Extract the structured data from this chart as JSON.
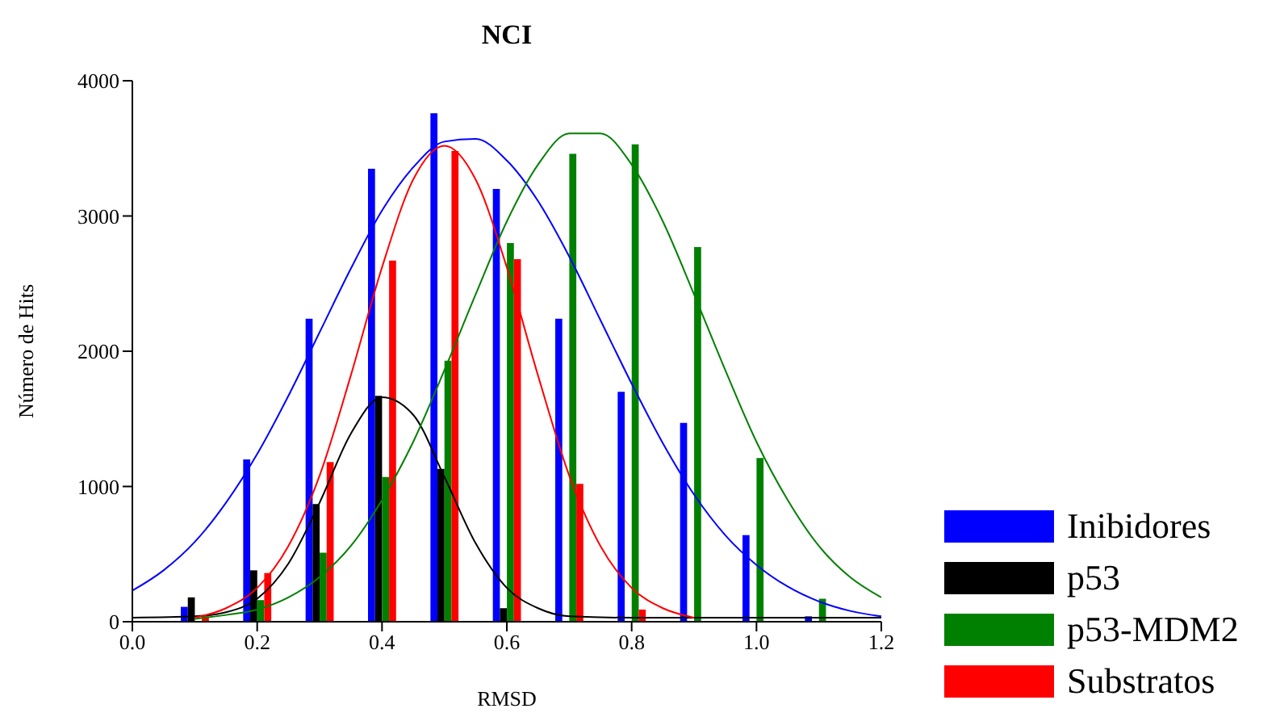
{
  "chart_data": {
    "type": "bar",
    "title": "NCI",
    "xlabel": "RMSD",
    "ylabel": "Número de Hits",
    "x": [
      0.1,
      0.2,
      0.3,
      0.4,
      0.5,
      0.6,
      0.7,
      0.8,
      0.9,
      1.0,
      1.1
    ],
    "xlim": [
      0,
      1.2
    ],
    "xticks": [
      {
        "value": 0,
        "label": "0.0"
      },
      {
        "value": 0.2,
        "label": "0.2"
      },
      {
        "value": 0.4,
        "label": "0.4"
      },
      {
        "value": 0.6,
        "label": "0.6"
      },
      {
        "value": 0.8,
        "label": "0.8"
      },
      {
        "value": 1,
        "label": "1.0"
      },
      {
        "value": 1.2,
        "label": "1.2"
      }
    ],
    "ylim": [
      0,
      4000
    ],
    "yticks": [
      0,
      1000,
      2000,
      3000,
      4000
    ],
    "grid": false,
    "legend": "bottom right",
    "series": [
      {
        "name": "Inibidores",
        "color": "#0000ff",
        "values": [
          110,
          1200,
          2240,
          3350,
          3760,
          3200,
          2240,
          1700,
          1470,
          640,
          40
        ]
      },
      {
        "name": "p53",
        "color": "#000000",
        "values": [
          180,
          380,
          870,
          1670,
          1130,
          100,
          0,
          0,
          0,
          0,
          0
        ]
      },
      {
        "name": "p53-MDM2",
        "color": "#008000",
        "values": [
          0,
          160,
          510,
          1070,
          1930,
          2800,
          3460,
          3530,
          2770,
          1210,
          170
        ]
      },
      {
        "name": "Substratos",
        "color": "#ff0000",
        "values": [
          40,
          360,
          1180,
          2670,
          3480,
          2680,
          1020,
          90,
          0,
          0,
          0
        ]
      },
      {
        "type": "line",
        "color": "#0000ff",
        "x": [
          0,
          0.05,
          0.1,
          0.15,
          0.2,
          0.25,
          0.3,
          0.35,
          0.4,
          0.45,
          0.5,
          0.55,
          0.6,
          0.65,
          0.7,
          0.75,
          0.8,
          0.85,
          0.9,
          0.95,
          1.0,
          1.05,
          1.1,
          1.15,
          1.2
        ],
        "values": [
          230,
          380,
          590,
          880,
          1240,
          1670,
          2140,
          2610,
          3040,
          3360,
          3550,
          3570,
          3410,
          3110,
          2700,
          2230,
          1760,
          1320,
          940,
          640,
          420,
          260,
          150,
          80,
          40
        ]
      },
      {
        "type": "line",
        "color": "#000000",
        "x": [
          0,
          0.1,
          0.15,
          0.2,
          0.25,
          0.3,
          0.35,
          0.4,
          0.45,
          0.5,
          0.55,
          0.6,
          0.65,
          0.7,
          0.8,
          1.0,
          1.2
        ],
        "values": [
          30,
          40,
          70,
          170,
          430,
          880,
          1390,
          1660,
          1530,
          1070,
          580,
          250,
          100,
          40,
          30,
          30,
          30
        ]
      },
      {
        "type": "line",
        "color": "#008000",
        "x": [
          0.1,
          0.15,
          0.2,
          0.25,
          0.3,
          0.35,
          0.4,
          0.45,
          0.5,
          0.55,
          0.6,
          0.65,
          0.7,
          0.75,
          0.8,
          0.85,
          0.9,
          0.95,
          1.0,
          1.05,
          1.1,
          1.15,
          1.2
        ],
        "values": [
          20,
          50,
          90,
          180,
          330,
          560,
          900,
          1330,
          1860,
          2420,
          2960,
          3380,
          3610,
          3610,
          3380,
          2960,
          2420,
          1860,
          1330,
          900,
          560,
          330,
          180
        ]
      },
      {
        "type": "line",
        "color": "#ff0000",
        "x": [
          0.1,
          0.15,
          0.2,
          0.25,
          0.3,
          0.35,
          0.4,
          0.45,
          0.5,
          0.55,
          0.6,
          0.65,
          0.7,
          0.75,
          0.8,
          0.85,
          0.9
        ],
        "values": [
          30,
          100,
          250,
          560,
          1080,
          1820,
          2620,
          3270,
          3520,
          3270,
          2620,
          1820,
          1080,
          560,
          250,
          100,
          30
        ]
      }
    ]
  }
}
